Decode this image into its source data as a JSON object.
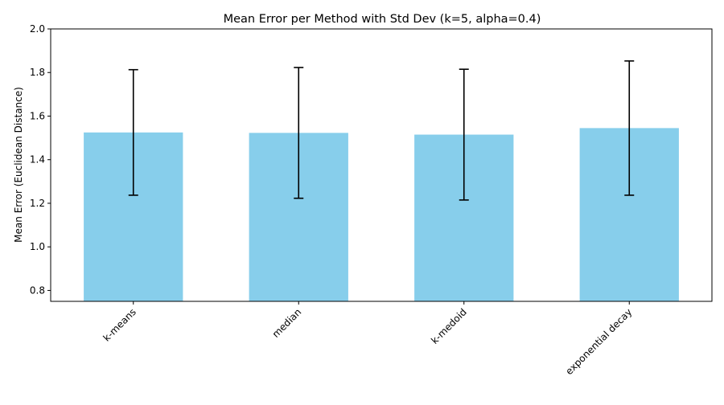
{
  "chart_data": {
    "type": "bar",
    "title": "Mean Error per Method with Std Dev (k=5, alpha=0.4)",
    "xlabel": "",
    "ylabel": "Mean Error (Euclidean Distance)",
    "categories": [
      "k-means",
      "median",
      "k-medoid",
      "exponential decay"
    ],
    "values": [
      1.525,
      1.523,
      1.515,
      1.545
    ],
    "errors": [
      0.288,
      0.3,
      0.3,
      0.308
    ],
    "ylim": [
      0.75,
      2.0
    ],
    "yticks": [
      "0.8",
      "1.0",
      "1.2",
      "1.4",
      "1.6",
      "1.8",
      "2.0"
    ],
    "bar_color": "#87CEEB",
    "error_color": "#000000",
    "grid": false,
    "legend": "none"
  }
}
